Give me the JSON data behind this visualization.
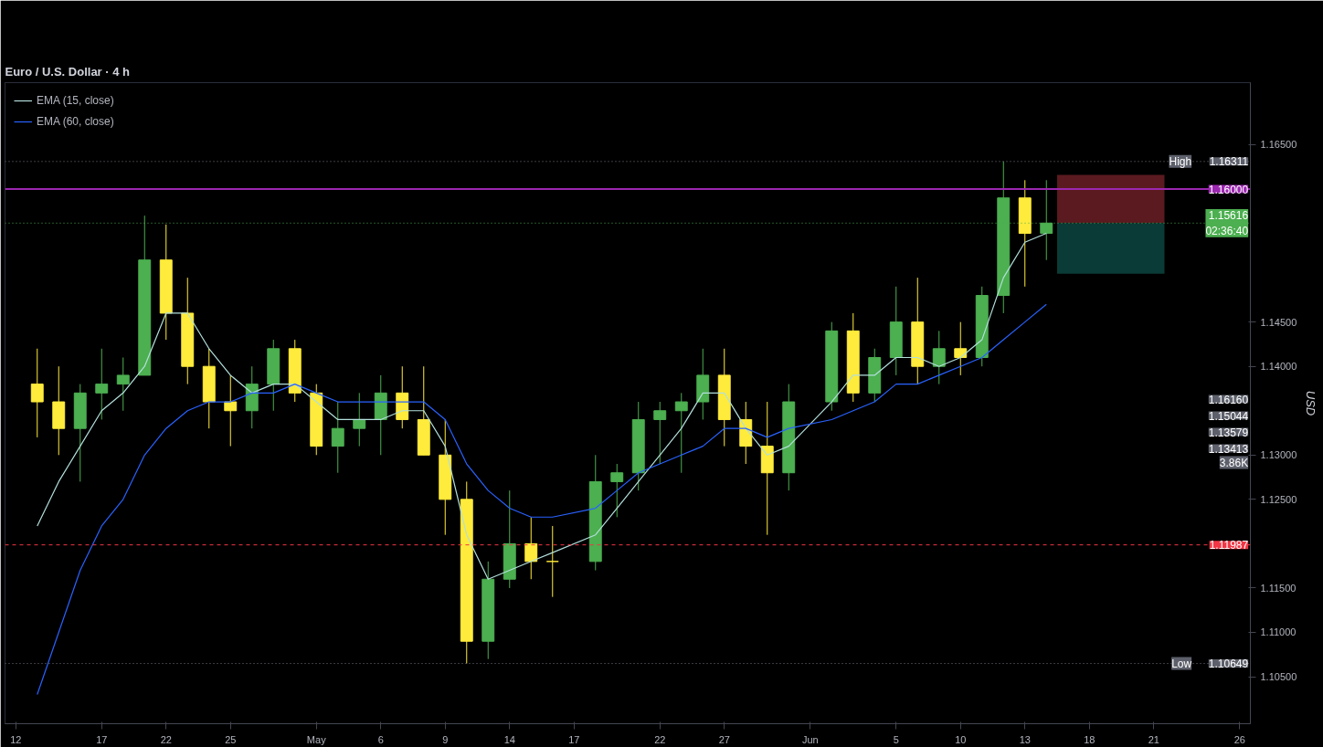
{
  "chart_data": {
    "type": "candlestick",
    "title": "Euro / U.S. Dollar · 4 h",
    "ylabel": "USD",
    "categories": [
      "12",
      null,
      null,
      null,
      "17",
      null,
      null,
      "22",
      null,
      null,
      "25",
      null,
      null,
      null,
      "May",
      null,
      null,
      "6",
      null,
      null,
      "9",
      null,
      null,
      "14",
      null,
      null,
      "17",
      null,
      null,
      null,
      "22",
      null,
      null,
      "27",
      null,
      null,
      null,
      "Jun",
      null,
      null,
      null,
      "5",
      null,
      null,
      "10",
      null,
      null,
      "13",
      null,
      null,
      "18",
      null,
      null,
      "21",
      null,
      null,
      null,
      "26"
    ],
    "ohlc": [
      null,
      [
        1.138,
        1.142,
        1.132,
        1.136
      ],
      [
        1.136,
        1.14,
        1.13,
        1.133
      ],
      [
        1.133,
        1.138,
        1.127,
        1.137
      ],
      [
        1.137,
        1.142,
        1.134,
        1.138
      ],
      [
        1.138,
        1.141,
        1.135,
        1.139
      ],
      [
        1.139,
        1.157,
        1.139,
        1.152
      ],
      [
        1.152,
        1.156,
        1.143,
        1.146
      ],
      [
        1.146,
        1.15,
        1.138,
        1.14
      ],
      [
        1.14,
        1.142,
        1.133,
        1.136
      ],
      [
        1.136,
        1.139,
        1.131,
        1.135
      ],
      [
        1.135,
        1.14,
        1.133,
        1.138
      ],
      [
        1.138,
        1.143,
        1.135,
        1.142
      ],
      [
        1.142,
        1.143,
        1.136,
        1.137
      ],
      [
        1.137,
        1.138,
        1.13,
        1.131
      ],
      [
        1.131,
        1.136,
        1.128,
        1.133
      ],
      [
        1.133,
        1.137,
        1.131,
        1.134
      ],
      [
        1.134,
        1.139,
        1.13,
        1.137
      ],
      [
        1.137,
        1.14,
        1.133,
        1.134
      ],
      [
        1.134,
        1.14,
        1.13,
        1.13
      ],
      [
        1.13,
        1.134,
        1.121,
        1.125
      ],
      [
        1.125,
        1.127,
        1.10649,
        1.109
      ],
      [
        1.109,
        1.118,
        1.107,
        1.116
      ],
      [
        1.116,
        1.126,
        1.115,
        1.12
      ],
      [
        1.12,
        1.123,
        1.116,
        1.118
      ],
      [
        1.118,
        1.122,
        1.114,
        1.118
      ],
      null,
      [
        1.118,
        1.13,
        1.117,
        1.127
      ],
      [
        1.127,
        1.129,
        1.123,
        1.128
      ],
      [
        1.128,
        1.136,
        1.126,
        1.134
      ],
      [
        1.134,
        1.136,
        1.129,
        1.135
      ],
      [
        1.135,
        1.137,
        1.128,
        1.136
      ],
      [
        1.136,
        1.142,
        1.134,
        1.139
      ],
      [
        1.139,
        1.142,
        1.131,
        1.134
      ],
      [
        1.134,
        1.136,
        1.129,
        1.131
      ],
      [
        1.131,
        1.136,
        1.121,
        1.128
      ],
      [
        1.128,
        1.138,
        1.126,
        1.136
      ],
      null,
      [
        1.136,
        1.145,
        1.135,
        1.144
      ],
      [
        1.144,
        1.146,
        1.136,
        1.137
      ],
      [
        1.137,
        1.142,
        1.136,
        1.141
      ],
      [
        1.141,
        1.149,
        1.139,
        1.145
      ],
      [
        1.145,
        1.15,
        1.138,
        1.14
      ],
      [
        1.14,
        1.144,
        1.138,
        1.142
      ],
      [
        1.142,
        1.145,
        1.139,
        1.141
      ],
      [
        1.141,
        1.149,
        1.14,
        1.148
      ],
      [
        1.148,
        1.16311,
        1.146,
        1.159
      ],
      [
        1.159,
        1.161,
        1.149,
        1.155
      ],
      [
        1.155,
        1.161,
        1.152,
        1.15616
      ],
      null,
      null,
      null,
      null,
      null,
      null,
      null,
      null,
      null
    ],
    "colors": [
      null,
      "#ffeb3b",
      "#ffeb3b",
      "#4caf50",
      "#4caf50",
      "#4caf50",
      "#4caf50",
      "#ffeb3b",
      "#ffeb3b",
      "#ffeb3b",
      "#ffeb3b",
      "#4caf50",
      "#4caf50",
      "#ffeb3b",
      "#ffeb3b",
      "#4caf50",
      "#4caf50",
      "#4caf50",
      "#ffeb3b",
      "#ffeb3b",
      "#ffeb3b",
      "#ffeb3b",
      "#4caf50",
      "#4caf50",
      "#ffeb3b",
      "#ffeb3b",
      null,
      "#4caf50",
      "#4caf50",
      "#4caf50",
      "#4caf50",
      "#4caf50",
      "#4caf50",
      "#ffeb3b",
      "#ffeb3b",
      "#ffeb3b",
      "#4caf50",
      null,
      "#4caf50",
      "#ffeb3b",
      "#4caf50",
      "#4caf50",
      "#ffeb3b",
      "#4caf50",
      "#ffeb3b",
      "#4caf50",
      "#4caf50",
      "#ffeb3b",
      "#4caf50",
      null,
      null,
      null,
      null,
      null,
      null,
      null,
      null,
      null
    ],
    "series": [
      {
        "name": "EMA (15, close)",
        "type": "line",
        "color": "#b2dfdb",
        "values": [
          null,
          1.122,
          1.127,
          1.131,
          1.135,
          1.137,
          1.14,
          1.146,
          1.146,
          1.142,
          1.139,
          1.137,
          1.138,
          1.138,
          1.136,
          1.134,
          1.134,
          1.134,
          1.135,
          1.135,
          1.131,
          1.121,
          1.116,
          1.117,
          1.118,
          1.119,
          null,
          1.121,
          1.124,
          1.127,
          1.13,
          1.133,
          1.137,
          1.137,
          1.133,
          1.13,
          1.131,
          null,
          1.136,
          1.139,
          1.139,
          1.141,
          1.141,
          1.14,
          1.141,
          1.143,
          1.15,
          1.154,
          1.155,
          null,
          null,
          null,
          null,
          null,
          null,
          null,
          null,
          null
        ]
      },
      {
        "name": "EMA (60, close)",
        "type": "line",
        "color": "#2962ff",
        "values": [
          null,
          1.103,
          1.11,
          1.117,
          1.122,
          1.125,
          1.13,
          1.133,
          1.135,
          1.136,
          1.136,
          1.137,
          1.137,
          1.138,
          1.137,
          1.136,
          1.136,
          1.136,
          1.136,
          1.136,
          1.134,
          1.129,
          1.126,
          1.124,
          1.123,
          1.123,
          null,
          1.124,
          1.126,
          1.128,
          1.129,
          1.13,
          1.131,
          1.133,
          1.133,
          1.132,
          1.133,
          null,
          1.134,
          1.135,
          1.136,
          1.138,
          1.138,
          1.139,
          1.14,
          1.141,
          1.143,
          1.145,
          1.147,
          null,
          null,
          null,
          null,
          null,
          null,
          null,
          null,
          null
        ]
      }
    ],
    "ylim": [
      1.0997,
      1.172
    ],
    "yticks": [
      {
        "value": 1.105,
        "label": "1.10500"
      },
      {
        "value": 1.11,
        "label": "1.11000"
      },
      {
        "value": 1.115,
        "label": "1.11500"
      },
      {
        "value": 1.125,
        "label": "1.12500"
      },
      {
        "value": 1.13,
        "label": "1.13000"
      },
      {
        "value": 1.14,
        "label": "1.14000"
      },
      {
        "value": 1.145,
        "label": "1.14500"
      },
      {
        "value": 1.165,
        "label": "1.16500"
      }
    ],
    "ref_lines": [
      {
        "axis": "y",
        "value": 1.16,
        "label": null,
        "color": "#9c27b0",
        "line_style": "solid"
      },
      {
        "axis": "y",
        "value": 1.11987,
        "label": null,
        "color": "#f23645",
        "line_style": "dashed"
      },
      {
        "axis": "y",
        "value": 1.16311,
        "label": "High",
        "color": "#787b86",
        "line_style": "dotted"
      },
      {
        "axis": "y",
        "value": 1.10649,
        "label": "Low",
        "color": "#787b86",
        "line_style": "dotted"
      },
      {
        "axis": "y",
        "value": 1.15616,
        "label": null,
        "color": "#4caf50",
        "line_style": "dotted"
      }
    ],
    "bands": [
      {
        "axis": "y",
        "from": 1.15616,
        "to": 1.1616,
        "label": null,
        "color": "#5b1a1f"
      },
      {
        "axis": "y",
        "from": 1.15044,
        "to": 1.15616,
        "label": null,
        "color": "#0b3b36"
      }
    ],
    "annotations": [
      {
        "text": "1.16311",
        "y": 1.16311
      },
      "1.16160",
      {
        "text": "1.16000",
        "y": 1.16
      },
      {
        "text": "1.15616\n02:36:40",
        "y": 1.15616
      },
      "1.15044",
      "1.13579",
      "1.13413",
      {
        "text": "1.11987",
        "y": 1.11987
      },
      {
        "text": "1.10649",
        "y": 1.10649
      },
      "3.86K"
    ],
    "legend": "top left",
    "grid": false
  }
}
